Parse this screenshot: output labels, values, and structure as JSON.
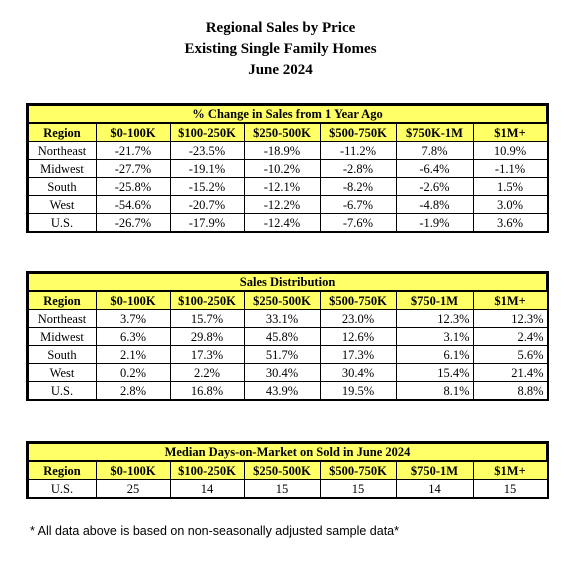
{
  "title": {
    "line1": "Regional Sales by Price",
    "line2": "Existing Single Family Homes",
    "line3": "June 2024"
  },
  "table1": {
    "title": "% Change in Sales from 1 Year Ago",
    "headers": [
      "Region",
      "$0-100K",
      "$100-250K",
      "$250-500K",
      "$500-750K",
      "$750K-1M",
      "$1M+"
    ],
    "rows": [
      [
        "Northeast",
        "-21.7%",
        "-23.5%",
        "-18.9%",
        "-11.2%",
        "7.8%",
        "10.9%"
      ],
      [
        "Midwest",
        "-27.7%",
        "-19.1%",
        "-10.2%",
        "-2.8%",
        "-6.4%",
        "-1.1%"
      ],
      [
        "South",
        "-25.8%",
        "-15.2%",
        "-12.1%",
        "-8.2%",
        "-2.6%",
        "1.5%"
      ],
      [
        "West",
        "-54.6%",
        "-20.7%",
        "-12.2%",
        "-6.7%",
        "-4.8%",
        "3.0%"
      ],
      [
        "U.S.",
        "-26.7%",
        "-17.9%",
        "-12.4%",
        "-7.6%",
        "-1.9%",
        "3.6%"
      ]
    ]
  },
  "table2": {
    "title": "Sales Distribution",
    "headers": [
      "Region",
      "$0-100K",
      "$100-250K",
      "$250-500K",
      "$500-750K",
      "$750-1M",
      "$1M+"
    ],
    "rows": [
      [
        "Northeast",
        "3.7%",
        "15.7%",
        "33.1%",
        "23.0%",
        "12.3%",
        "12.3%"
      ],
      [
        "Midwest",
        "6.3%",
        "29.8%",
        "45.8%",
        "12.6%",
        "3.1%",
        "2.4%"
      ],
      [
        "South",
        "2.1%",
        "17.3%",
        "51.7%",
        "17.3%",
        "6.1%",
        "5.6%"
      ],
      [
        "West",
        "0.2%",
        "2.2%",
        "30.4%",
        "30.4%",
        "15.4%",
        "21.4%"
      ],
      [
        "U.S.",
        "2.8%",
        "16.8%",
        "43.9%",
        "19.5%",
        "8.1%",
        "8.8%"
      ]
    ]
  },
  "table3": {
    "title": "Median Days-on-Market on Sold in June 2024",
    "headers": [
      "Region",
      "$0-100K",
      "$100-250K",
      "$250-500K",
      "$500-750K",
      "$750-1M",
      "$1M+"
    ],
    "rows": [
      [
        "U.S.",
        "25",
        "14",
        "15",
        "15",
        "14",
        "15"
      ]
    ]
  },
  "footnote": "* All data above is based on non-seasonally adjusted sample data*"
}
